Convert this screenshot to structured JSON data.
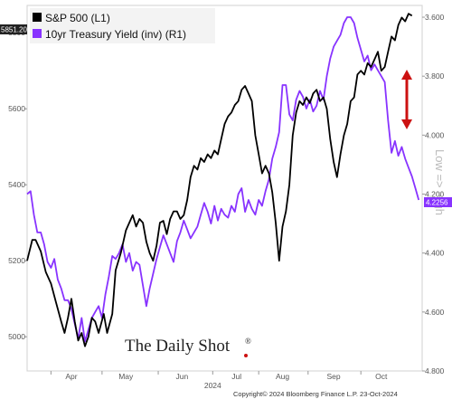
{
  "chart_data": {
    "type": "line",
    "left_axis": {
      "ticks": [
        5000,
        5200,
        5400,
        5600,
        5800
      ],
      "tick_labels": [
        "5000",
        "5200",
        "5400",
        "5600",
        "5800"
      ],
      "ylim": [
        4910,
        5872
      ]
    },
    "right_axis": {
      "inverted": true,
      "ticks": [
        3.6,
        3.8,
        4.0,
        4.2,
        4.4,
        4.6,
        4.8
      ],
      "tick_labels": [
        "3.600",
        "3.800",
        "4.000",
        "4.200",
        "4.400",
        "4.600",
        "4.800"
      ],
      "ylim": [
        3.56,
        4.8
      ],
      "label": "Low => High"
    },
    "x_axis": {
      "months": [
        "Apr",
        "May",
        "Jun",
        "Jul",
        "Aug",
        "Sep",
        "Oct"
      ],
      "year_label": "2024"
    },
    "series": [
      {
        "name": "S&P 500 (L1)",
        "color": "#000000",
        "last_value_label": "5851.20",
        "points": [
          [
            0,
            5200
          ],
          [
            3,
            5255
          ],
          [
            5,
            5255
          ],
          [
            8,
            5225
          ],
          [
            11,
            5170
          ],
          [
            14,
            5140
          ],
          [
            17,
            5090
          ],
          [
            20,
            5040
          ],
          [
            22,
            5010
          ],
          [
            24,
            5050
          ],
          [
            26,
            5100
          ],
          [
            28,
            5040
          ],
          [
            30,
            4990
          ],
          [
            32,
            5010
          ],
          [
            34,
            4975
          ],
          [
            36,
            5000
          ],
          [
            38,
            5050
          ],
          [
            40,
            5040
          ],
          [
            42,
            5010
          ],
          [
            45,
            5060
          ],
          [
            47,
            5010
          ],
          [
            50,
            5060
          ],
          [
            52,
            5175
          ],
          [
            55,
            5220
          ],
          [
            58,
            5280
          ],
          [
            60,
            5300
          ],
          [
            62,
            5320
          ],
          [
            64,
            5290
          ],
          [
            66,
            5310
          ],
          [
            68,
            5300
          ],
          [
            70,
            5250
          ],
          [
            72,
            5220
          ],
          [
            74,
            5200
          ],
          [
            76,
            5240
          ],
          [
            78,
            5300
          ],
          [
            80,
            5305
          ],
          [
            82,
            5270
          ],
          [
            84,
            5310
          ],
          [
            86,
            5330
          ],
          [
            88,
            5330
          ],
          [
            90,
            5310
          ],
          [
            92,
            5320
          ],
          [
            94,
            5360
          ],
          [
            96,
            5420
          ],
          [
            98,
            5450
          ],
          [
            100,
            5440
          ],
          [
            102,
            5470
          ],
          [
            104,
            5460
          ],
          [
            106,
            5480
          ],
          [
            108,
            5470
          ],
          [
            110,
            5490
          ],
          [
            112,
            5480
          ],
          [
            114,
            5520
          ],
          [
            116,
            5560
          ],
          [
            118,
            5580
          ],
          [
            120,
            5590
          ],
          [
            122,
            5610
          ],
          [
            124,
            5620
          ],
          [
            126,
            5650
          ],
          [
            128,
            5660
          ],
          [
            130,
            5640
          ],
          [
            132,
            5620
          ],
          [
            134,
            5530
          ],
          [
            136,
            5480
          ],
          [
            138,
            5430
          ],
          [
            140,
            5450
          ],
          [
            142,
            5430
          ],
          [
            144,
            5380
          ],
          [
            146,
            5300
          ],
          [
            148,
            5200
          ],
          [
            150,
            5290
          ],
          [
            152,
            5330
          ],
          [
            154,
            5400
          ],
          [
            156,
            5530
          ],
          [
            158,
            5590
          ],
          [
            160,
            5620
          ],
          [
            162,
            5610
          ],
          [
            164,
            5630
          ],
          [
            166,
            5615
          ],
          [
            168,
            5640
          ],
          [
            170,
            5650
          ],
          [
            172,
            5620
          ],
          [
            174,
            5630
          ],
          [
            176,
            5600
          ],
          [
            178,
            5520
          ],
          [
            180,
            5460
          ],
          [
            182,
            5420
          ],
          [
            184,
            5480
          ],
          [
            186,
            5530
          ],
          [
            188,
            5560
          ],
          [
            190,
            5620
          ],
          [
            192,
            5630
          ],
          [
            194,
            5690
          ],
          [
            196,
            5700
          ],
          [
            198,
            5690
          ],
          [
            200,
            5720
          ],
          [
            202,
            5710
          ],
          [
            204,
            5730
          ],
          [
            206,
            5750
          ],
          [
            208,
            5700
          ],
          [
            210,
            5710
          ],
          [
            212,
            5750
          ],
          [
            214,
            5790
          ],
          [
            216,
            5780
          ],
          [
            218,
            5820
          ],
          [
            220,
            5840
          ],
          [
            222,
            5830
          ],
          [
            224,
            5850
          ],
          [
            226,
            5845
          ]
        ]
      },
      {
        "name": "10yr Treasury Yield (inv) (R1)",
        "color": "#8833ff",
        "last_value_label": "4.2256",
        "points": [
          [
            0,
            4.2
          ],
          [
            2,
            4.19
          ],
          [
            4,
            4.27
          ],
          [
            6,
            4.33
          ],
          [
            8,
            4.33
          ],
          [
            10,
            4.37
          ],
          [
            12,
            4.43
          ],
          [
            14,
            4.45
          ],
          [
            16,
            4.42
          ],
          [
            18,
            4.49
          ],
          [
            20,
            4.52
          ],
          [
            22,
            4.56
          ],
          [
            24,
            4.56
          ],
          [
            26,
            4.59
          ],
          [
            28,
            4.64
          ],
          [
            30,
            4.69
          ],
          [
            32,
            4.62
          ],
          [
            34,
            4.7
          ],
          [
            36,
            4.66
          ],
          [
            38,
            4.62
          ],
          [
            40,
            4.6
          ],
          [
            42,
            4.58
          ],
          [
            44,
            4.62
          ],
          [
            46,
            4.54
          ],
          [
            48,
            4.48
          ],
          [
            50,
            4.41
          ],
          [
            52,
            4.42
          ],
          [
            54,
            4.4
          ],
          [
            56,
            4.37
          ],
          [
            58,
            4.43
          ],
          [
            60,
            4.4
          ],
          [
            62,
            4.46
          ],
          [
            64,
            4.43
          ],
          [
            66,
            4.44
          ],
          [
            68,
            4.51
          ],
          [
            70,
            4.58
          ],
          [
            72,
            4.52
          ],
          [
            74,
            4.47
          ],
          [
            76,
            4.42
          ],
          [
            78,
            4.38
          ],
          [
            80,
            4.34
          ],
          [
            82,
            4.37
          ],
          [
            84,
            4.4
          ],
          [
            86,
            4.43
          ],
          [
            88,
            4.36
          ],
          [
            90,
            4.33
          ],
          [
            92,
            4.29
          ],
          [
            94,
            4.32
          ],
          [
            96,
            4.35
          ],
          [
            98,
            4.33
          ],
          [
            100,
            4.31
          ],
          [
            102,
            4.27
          ],
          [
            104,
            4.23
          ],
          [
            106,
            4.26
          ],
          [
            108,
            4.3
          ],
          [
            110,
            4.24
          ],
          [
            112,
            4.29
          ],
          [
            114,
            4.25
          ],
          [
            116,
            4.27
          ],
          [
            118,
            4.28
          ],
          [
            120,
            4.24
          ],
          [
            122,
            4.26
          ],
          [
            124,
            4.2
          ],
          [
            126,
            4.18
          ],
          [
            128,
            4.26
          ],
          [
            130,
            4.22
          ],
          [
            132,
            4.25
          ],
          [
            134,
            4.27
          ],
          [
            136,
            4.22
          ],
          [
            138,
            4.24
          ],
          [
            140,
            4.19
          ],
          [
            142,
            4.15
          ],
          [
            144,
            4.08
          ],
          [
            146,
            4.04
          ],
          [
            148,
            3.99
          ],
          [
            150,
            3.83
          ],
          [
            152,
            3.83
          ],
          [
            154,
            3.93
          ],
          [
            156,
            3.95
          ],
          [
            158,
            3.88
          ],
          [
            160,
            3.85
          ],
          [
            162,
            3.87
          ],
          [
            164,
            3.91
          ],
          [
            166,
            3.88
          ],
          [
            168,
            3.92
          ],
          [
            170,
            3.9
          ],
          [
            172,
            3.85
          ],
          [
            174,
            3.88
          ],
          [
            176,
            3.8
          ],
          [
            178,
            3.74
          ],
          [
            180,
            3.7
          ],
          [
            182,
            3.68
          ],
          [
            184,
            3.66
          ],
          [
            186,
            3.62
          ],
          [
            188,
            3.6
          ],
          [
            190,
            3.6
          ],
          [
            192,
            3.62
          ],
          [
            194,
            3.67
          ],
          [
            196,
            3.71
          ],
          [
            198,
            3.75
          ],
          [
            200,
            3.73
          ],
          [
            202,
            3.78
          ],
          [
            204,
            3.76
          ],
          [
            206,
            3.78
          ],
          [
            208,
            3.8
          ],
          [
            210,
            3.82
          ],
          [
            212,
            3.95
          ],
          [
            214,
            4.06
          ],
          [
            216,
            4.02
          ],
          [
            218,
            4.07
          ],
          [
            220,
            4.04
          ],
          [
            222,
            4.08
          ],
          [
            224,
            4.11
          ],
          [
            226,
            4.14
          ],
          [
            228,
            4.18
          ],
          [
            230,
            4.22
          ]
        ]
      }
    ],
    "legend_position": "top-left",
    "annotation": "red double-headed arrow showing divergence"
  },
  "brand": {
    "name": "The Daily Shot",
    "mark": "®"
  },
  "copyright": "Copyright© 2024 Bloomberg Finance L.P.   23-Oct-2024",
  "colors": {
    "sp500": "#000000",
    "yield": "#8833ff",
    "arrow": "#cc1111",
    "frame": "#d0d0d0",
    "badge_left": "#222222",
    "badge_right": "#8833ff"
  }
}
